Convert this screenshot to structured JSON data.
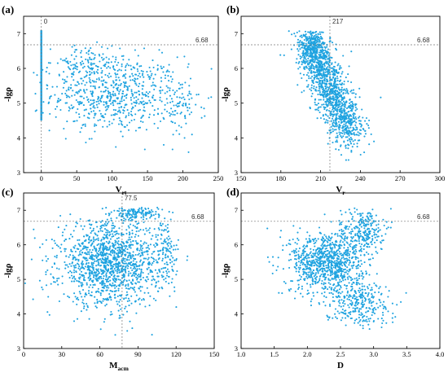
{
  "colors": {
    "points": "#1fa3e0",
    "axis": "#000000",
    "ref_line": "#777777"
  },
  "chart_data": [
    {
      "panel": "(a)",
      "type": "scatter",
      "xlabel": "V",
      "xlabel_sub": "rt",
      "ylabel": "-lgρ",
      "xlim": [
        -25,
        250
      ],
      "ylim": [
        3,
        7.5
      ],
      "xticks": [
        0,
        50,
        100,
        150,
        200,
        250
      ],
      "yticks": [
        3,
        4,
        5,
        6,
        7
      ],
      "hline": {
        "y": 6.68,
        "label": "6.68"
      },
      "vline": {
        "x": 0,
        "label": "0"
      },
      "clusters": [
        {
          "cx": 105,
          "cy": 5.25,
          "sx": 45,
          "sy": 0.55,
          "n": 650
        },
        {
          "cx": 60,
          "cy": 6.1,
          "sx": 25,
          "sy": 0.3,
          "n": 120
        },
        {
          "cx": 195,
          "cy": 4.9,
          "sx": 14,
          "sy": 0.5,
          "n": 80
        }
      ],
      "x0_column": {
        "x": 0,
        "y_from": 4.5,
        "y_to": 7.1
      }
    },
    {
      "panel": "(b)",
      "type": "scatter",
      "xlabel": "V",
      "xlabel_sub": "r",
      "ylabel": "-lgρ",
      "xlim": [
        150,
        300
      ],
      "ylim": [
        3,
        7.5
      ],
      "xticks": [
        150,
        180,
        210,
        240,
        270,
        300
      ],
      "yticks": [
        3,
        4,
        5,
        6,
        7
      ],
      "hline": {
        "y": 6.68,
        "label": "6.68"
      },
      "vline": {
        "x": 217,
        "label": "217"
      },
      "clusters": [
        {
          "cx": 215,
          "cy": 5.6,
          "sx": 11,
          "sy": 0.55,
          "n": 1100,
          "tilt": -0.055
        },
        {
          "cx": 205,
          "cy": 6.6,
          "sx": 5,
          "sy": 0.25,
          "n": 260
        },
        {
          "cx": 230,
          "cy": 4.4,
          "sx": 7,
          "sy": 0.35,
          "n": 200
        }
      ]
    },
    {
      "panel": "(c)",
      "type": "scatter",
      "xlabel": "M",
      "xlabel_sub": "acm",
      "ylabel": "-lgρ",
      "xlim": [
        0,
        150
      ],
      "ylim": [
        3,
        7.5
      ],
      "xticks": [
        0,
        30,
        60,
        90,
        120,
        150
      ],
      "yticks": [
        3,
        4,
        5,
        6,
        7
      ],
      "hline": {
        "y": 6.68,
        "label": "6.68"
      },
      "vline": {
        "x": 77.5,
        "label": "77.5"
      },
      "clusters": [
        {
          "cx": 68,
          "cy": 5.45,
          "sx": 20,
          "sy": 0.6,
          "n": 1400
        },
        {
          "cx": 88,
          "cy": 6.9,
          "sx": 9,
          "sy": 0.1,
          "n": 140
        },
        {
          "cx": 112,
          "cy": 5.8,
          "sx": 5,
          "sy": 0.45,
          "n": 110
        }
      ]
    },
    {
      "panel": "(d)",
      "type": "scatter",
      "xlabel": "D",
      "xlabel_sub": "",
      "ylabel": "-lgρ",
      "xlim": [
        1.0,
        4.0
      ],
      "ylim": [
        3,
        7.5
      ],
      "xticks": [
        1.0,
        1.5,
        2.0,
        2.5,
        3.0,
        3.5,
        4.0
      ],
      "xtick_labels": [
        "1.0",
        "1.5",
        "2.0",
        "2.5",
        "3.0",
        "3.5",
        "4.0"
      ],
      "yticks": [
        3,
        4,
        5,
        6,
        7
      ],
      "hline": {
        "y": 6.68,
        "label": "6.68"
      },
      "clusters": [
        {
          "cx": 2.3,
          "cy": 5.5,
          "sx": 0.28,
          "sy": 0.45,
          "n": 900
        },
        {
          "cx": 2.85,
          "cy": 6.4,
          "sx": 0.15,
          "sy": 0.35,
          "n": 250
        },
        {
          "cx": 2.75,
          "cy": 4.35,
          "sx": 0.25,
          "sy": 0.35,
          "n": 300
        }
      ]
    }
  ]
}
